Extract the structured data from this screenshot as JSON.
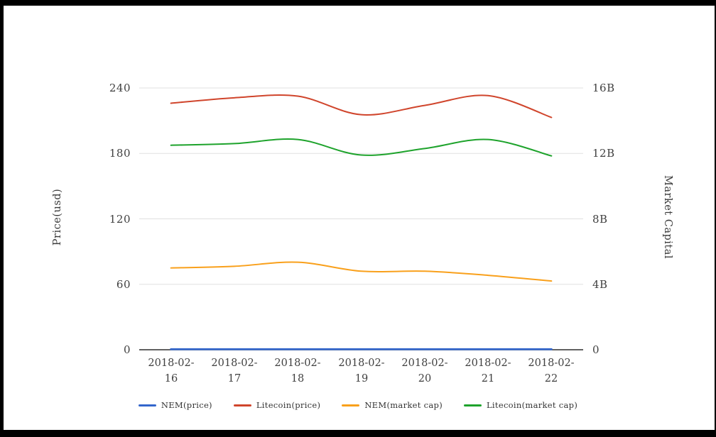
{
  "axes": {
    "left": {
      "title": "Price(usd)",
      "ticks": [
        "240",
        "180",
        "120",
        "60",
        "0"
      ]
    },
    "right": {
      "title": "Market Capital",
      "ticks": [
        "16B",
        "12B",
        "8B",
        "4B",
        "0"
      ]
    }
  },
  "chart_data": {
    "type": "line",
    "title": "",
    "categories": [
      "2018-02-16",
      "2018-02-17",
      "2018-02-18",
      "2018-02-19",
      "2018-02-20",
      "2018-02-21",
      "2018-02-22"
    ],
    "left_axis": {
      "label": "Price(usd)",
      "min": 0,
      "max": 240,
      "tick_values": [
        240,
        180,
        120,
        60,
        0
      ]
    },
    "right_axis": {
      "label": "Market Capital",
      "unit": "B",
      "min": 0,
      "max": 16,
      "tick_values": [
        16,
        12,
        8,
        4,
        0
      ],
      "tick_labels": [
        "16B",
        "12B",
        "8B",
        "4B",
        "0"
      ]
    },
    "grid": "horizontal-only",
    "legend_position": "bottom",
    "series": [
      {
        "name": "NEM(price)",
        "axis": "left",
        "color": "#3366cc",
        "values": [
          0.5,
          0.5,
          0.5,
          0.5,
          0.5,
          0.5,
          0.5
        ]
      },
      {
        "name": "Litecoin(price)",
        "axis": "left",
        "color": "#d0452c",
        "values": [
          226,
          231,
          232.5,
          215.5,
          224,
          233,
          213
        ]
      },
      {
        "name": "NEM(market cap)",
        "axis": "right",
        "color": "#f9a01b",
        "values": [
          5.0,
          5.1,
          5.35,
          4.8,
          4.8,
          4.55,
          4.2
        ]
      },
      {
        "name": "Litecoin(market cap)",
        "axis": "right",
        "color": "#1ea32c",
        "values": [
          12.5,
          12.6,
          12.85,
          11.9,
          12.3,
          12.85,
          11.85
        ]
      }
    ]
  }
}
